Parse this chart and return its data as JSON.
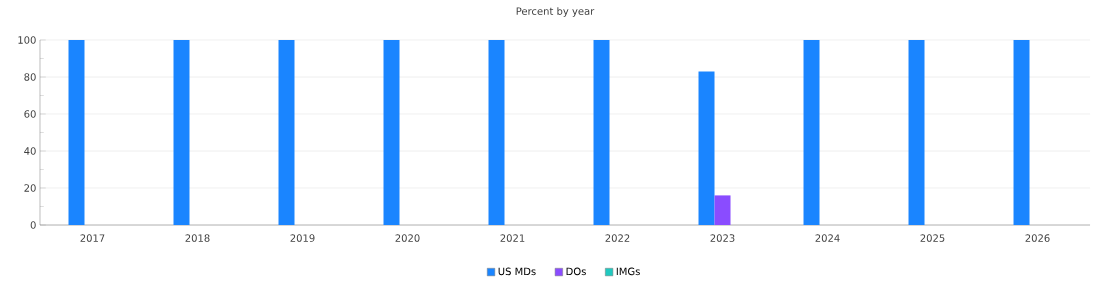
{
  "chart_data": {
    "type": "bar",
    "title": "Percent by year",
    "categories": [
      "2017",
      "2018",
      "2019",
      "2020",
      "2021",
      "2022",
      "2023",
      "2024",
      "2025",
      "2026"
    ],
    "series": [
      {
        "name": "US MDs",
        "color": "#1a85ff",
        "values": [
          100,
          100,
          100,
          100,
          100,
          100,
          83,
          100,
          100,
          100
        ]
      },
      {
        "name": "DOs",
        "color": "#8a4cff",
        "values": [
          0,
          0,
          0,
          0,
          0,
          0,
          16,
          0,
          0,
          0
        ]
      },
      {
        "name": "IMGs",
        "color": "#20c9c0",
        "values": [
          0,
          0,
          0,
          0,
          0,
          0,
          0,
          0,
          0,
          0
        ]
      }
    ],
    "ylim": [
      0,
      100
    ],
    "yticks": [
      0,
      20,
      40,
      60,
      80,
      100
    ],
    "grid": "y",
    "legend": "bottom"
  }
}
